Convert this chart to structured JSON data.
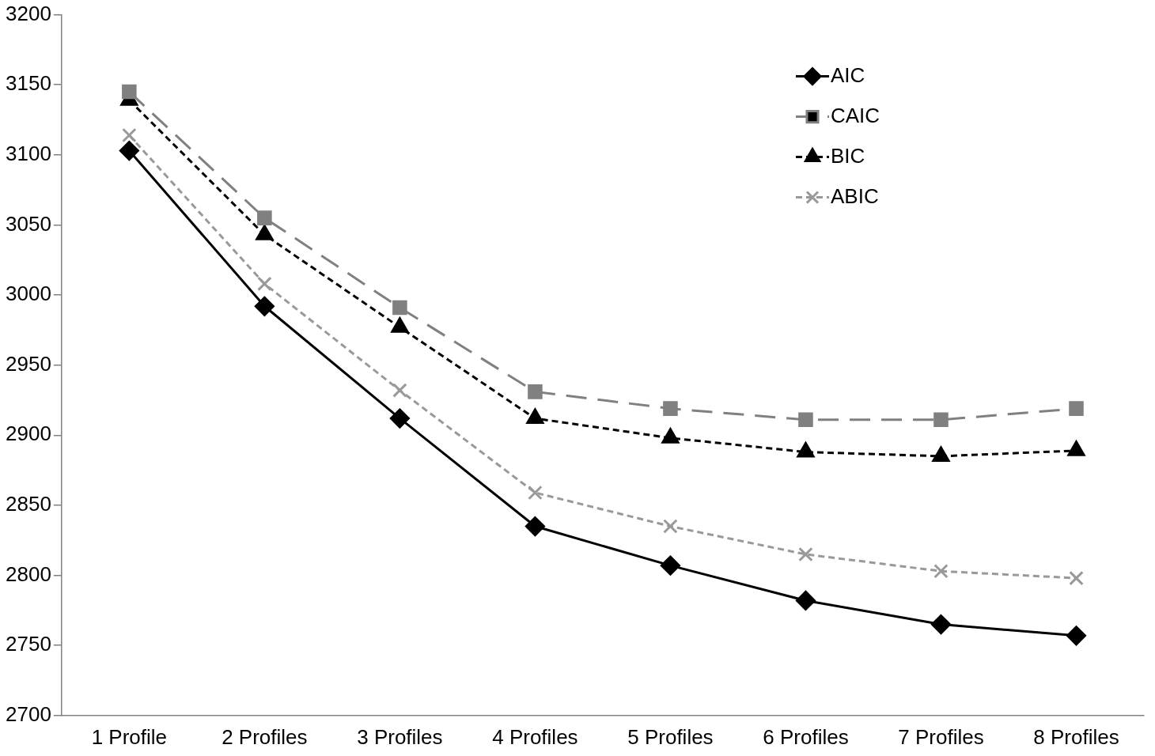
{
  "chart_data": {
    "type": "line",
    "categories": [
      "1 Profile",
      "2 Profiles",
      "3 Profiles",
      "4 Profiles",
      "5 Profiles",
      "6 Profiles",
      "7 Profiles",
      "8 Profiles"
    ],
    "ylim": [
      2700,
      3200
    ],
    "yticks": [
      2700,
      2750,
      2800,
      2850,
      2900,
      2950,
      3000,
      3050,
      3100,
      3150,
      3200
    ],
    "grid": false,
    "legend": "top right",
    "series": [
      {
        "name": "AIC",
        "color": "#000000",
        "marker": "diamond",
        "line_style": "solid",
        "values": [
          3103,
          2992,
          2912,
          2835,
          2807,
          2782,
          2765,
          2757
        ]
      },
      {
        "name": "CAIC",
        "color": "#808080",
        "marker": "square",
        "line_style": "dashed",
        "values": [
          3145,
          3055,
          2991,
          2931,
          2919,
          2911,
          2911,
          2919
        ]
      },
      {
        "name": "BIC",
        "color": "#000000",
        "marker": "triangle",
        "line_style": "dotted",
        "values": [
          3139,
          3043,
          2977,
          2912,
          2898,
          2888,
          2885,
          2889
        ]
      },
      {
        "name": "ABIC",
        "color": "#999999",
        "marker": "cross",
        "line_style": "dotted",
        "values": [
          3114,
          3008,
          2932,
          2859,
          2835,
          2815,
          2803,
          2798
        ]
      }
    ]
  }
}
